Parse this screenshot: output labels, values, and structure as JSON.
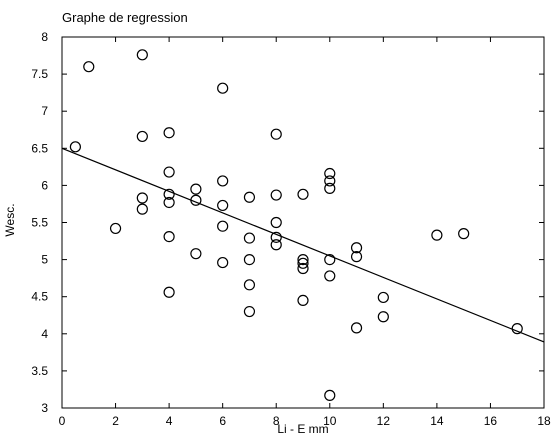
{
  "chart_data": {
    "type": "scatter",
    "title": "Graphe de regression",
    "xlabel": "Li - E mm",
    "ylabel": "Wesc.",
    "xlim": [
      0,
      18
    ],
    "ylim": [
      3,
      8
    ],
    "xticks": [
      0,
      2,
      4,
      6,
      8,
      10,
      12,
      14,
      16,
      18
    ],
    "xtick_labels": [
      "0",
      "2",
      "4",
      "6",
      "8",
      "10",
      "12",
      "14",
      "16",
      "18"
    ],
    "yticks": [
      3,
      3.5,
      4,
      4.5,
      5,
      5.5,
      6,
      6.5,
      7,
      7.5,
      8
    ],
    "ytick_labels": [
      "3",
      "3.5",
      "4",
      "4.5",
      "5",
      "5.5",
      "6",
      "6.5",
      "7",
      "7.5",
      "8"
    ],
    "grid": false,
    "points": [
      {
        "x": 0.5,
        "y": 6.52
      },
      {
        "x": 1,
        "y": 7.6
      },
      {
        "x": 2,
        "y": 5.42
      },
      {
        "x": 3,
        "y": 7.76
      },
      {
        "x": 3,
        "y": 6.66
      },
      {
        "x": 3,
        "y": 5.83
      },
      {
        "x": 3,
        "y": 5.68
      },
      {
        "x": 4,
        "y": 6.71
      },
      {
        "x": 4,
        "y": 6.18
      },
      {
        "x": 4,
        "y": 5.88
      },
      {
        "x": 4,
        "y": 5.77
      },
      {
        "x": 4,
        "y": 5.31
      },
      {
        "x": 4,
        "y": 4.56
      },
      {
        "x": 5,
        "y": 5.95
      },
      {
        "x": 5,
        "y": 5.8
      },
      {
        "x": 5,
        "y": 5.08
      },
      {
        "x": 6,
        "y": 7.31
      },
      {
        "x": 6,
        "y": 6.06
      },
      {
        "x": 6,
        "y": 5.73
      },
      {
        "x": 6,
        "y": 5.45
      },
      {
        "x": 6,
        "y": 4.96
      },
      {
        "x": 7,
        "y": 5.84
      },
      {
        "x": 7,
        "y": 5.29
      },
      {
        "x": 7,
        "y": 5.0
      },
      {
        "x": 7,
        "y": 4.66
      },
      {
        "x": 7,
        "y": 4.3
      },
      {
        "x": 8,
        "y": 6.69
      },
      {
        "x": 8,
        "y": 5.87
      },
      {
        "x": 8,
        "y": 5.5
      },
      {
        "x": 8,
        "y": 5.3
      },
      {
        "x": 8,
        "y": 5.2
      },
      {
        "x": 9,
        "y": 5.88
      },
      {
        "x": 9,
        "y": 5.0
      },
      {
        "x": 9,
        "y": 4.95
      },
      {
        "x": 9,
        "y": 4.88
      },
      {
        "x": 9,
        "y": 4.45
      },
      {
        "x": 10,
        "y": 6.16
      },
      {
        "x": 10,
        "y": 6.06
      },
      {
        "x": 10,
        "y": 5.96
      },
      {
        "x": 10,
        "y": 5.0
      },
      {
        "x": 10,
        "y": 4.78
      },
      {
        "x": 10,
        "y": 3.17
      },
      {
        "x": 11,
        "y": 5.16
      },
      {
        "x": 11,
        "y": 5.04
      },
      {
        "x": 11,
        "y": 4.08
      },
      {
        "x": 12,
        "y": 4.49
      },
      {
        "x": 12,
        "y": 4.23
      },
      {
        "x": 14,
        "y": 5.33
      },
      {
        "x": 15,
        "y": 5.35
      },
      {
        "x": 17,
        "y": 4.07
      }
    ],
    "regression_line": {
      "x": [
        0,
        18
      ],
      "y": [
        6.5,
        3.89
      ]
    },
    "colors": {
      "marker_stroke": "#000000",
      "line": "#000000",
      "background": "#ffffff"
    }
  }
}
